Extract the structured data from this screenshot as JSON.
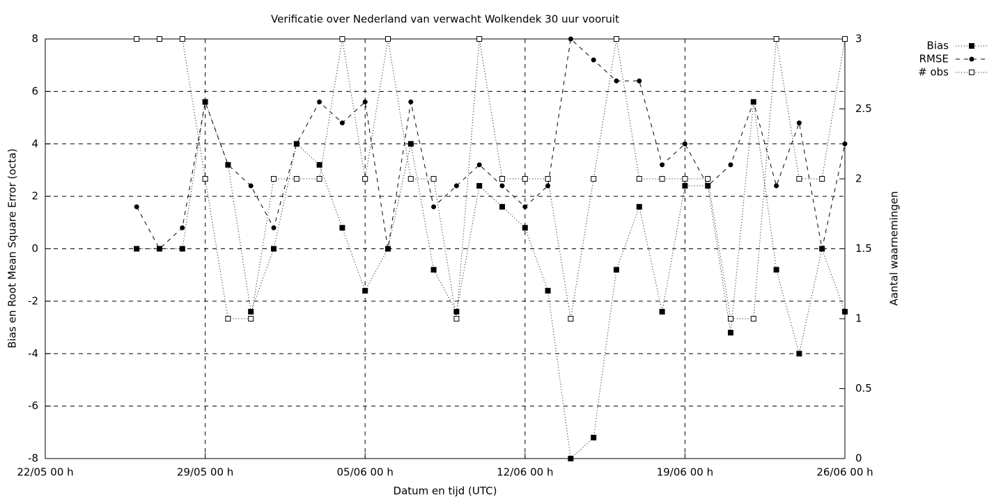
{
  "chart_data": {
    "type": "line",
    "title": "Verificatie over Nederland van verwacht Wolkendek 30 uur vooruit",
    "xlabel": "Datum en tijd (UTC)",
    "ylabel": "Bias en Root Mean Square Error (octa)",
    "y2label": "Aantal waarnemingen",
    "x": [
      "26/05 00 h",
      "27/05 00 h",
      "28/05 00 h",
      "29/05 00 h",
      "30/05 00 h",
      "31/05 00 h",
      "01/06 00 h",
      "02/06 00 h",
      "03/06 00 h",
      "04/06 00 h",
      "05/06 00 h",
      "06/06 00 h",
      "07/06 00 h",
      "08/06 00 h",
      "09/06 00 h",
      "10/06 00 h",
      "11/06 00 h",
      "12/06 00 h",
      "13/06 00 h",
      "14/06 00 h",
      "15/06 00 h",
      "16/06 00 h",
      "17/06 00 h",
      "18/06 00 h",
      "19/06 00 h",
      "20/06 00 h",
      "21/06 00 h",
      "22/06 00 h",
      "23/06 00 h",
      "24/06 00 h",
      "25/06 00 h",
      "26/06 00 h"
    ],
    "xlim": [
      "22/05 00 h",
      "26/06 00 h"
    ],
    "xticks": [
      "22/05 00 h",
      "29/05 00 h",
      "05/06 00 h",
      "12/06 00 h",
      "19/06 00 h",
      "26/06 00 h"
    ],
    "ylim": [
      -8,
      8
    ],
    "yticks": [
      -8,
      -6,
      -4,
      -2,
      0,
      2,
      4,
      6,
      8
    ],
    "y2lim": [
      0,
      3
    ],
    "y2ticks": [
      0,
      0.5,
      1,
      1.5,
      2,
      2.5,
      3
    ],
    "grid": true,
    "legend": "top-right-outside",
    "series": [
      {
        "name": "Bias",
        "color": "#000000",
        "line_style": "dotted",
        "marker": "square",
        "values": [
          0,
          0,
          0,
          5.6,
          3.2,
          -2.4,
          0,
          4,
          3.2,
          0.8,
          -1.6,
          0,
          4,
          -0.8,
          -2.4,
          2.4,
          1.6,
          0.8,
          -1.6,
          -8,
          -7.2,
          -0.8,
          1.6,
          -2.4,
          2.4,
          2.4,
          -3.2,
          5.6,
          -0.8,
          -4,
          0,
          -2.4
        ]
      },
      {
        "name": "RMSE",
        "color": "#000000",
        "line_style": "dashed",
        "marker": "circle",
        "values": [
          1.6,
          0,
          0.8,
          5.6,
          3.2,
          2.4,
          0.8,
          4,
          5.6,
          4.8,
          5.6,
          0,
          5.6,
          1.6,
          2.4,
          3.2,
          2.4,
          1.6,
          2.4,
          8,
          7.2,
          6.4,
          6.4,
          3.2,
          4,
          2.4,
          3.2,
          5.6,
          2.4,
          4.8,
          0,
          4
        ]
      },
      {
        "name": "# obs",
        "color": "#000000",
        "line_style": "dotted",
        "marker": "open-square",
        "axis": "y2",
        "values": [
          3,
          3,
          3,
          2,
          1,
          1,
          2,
          2,
          2,
          3,
          2,
          3,
          2,
          2,
          1,
          3,
          2,
          2,
          2,
          1,
          2,
          3,
          2,
          2,
          2,
          2,
          1,
          1,
          3,
          2,
          2,
          3
        ]
      }
    ]
  }
}
